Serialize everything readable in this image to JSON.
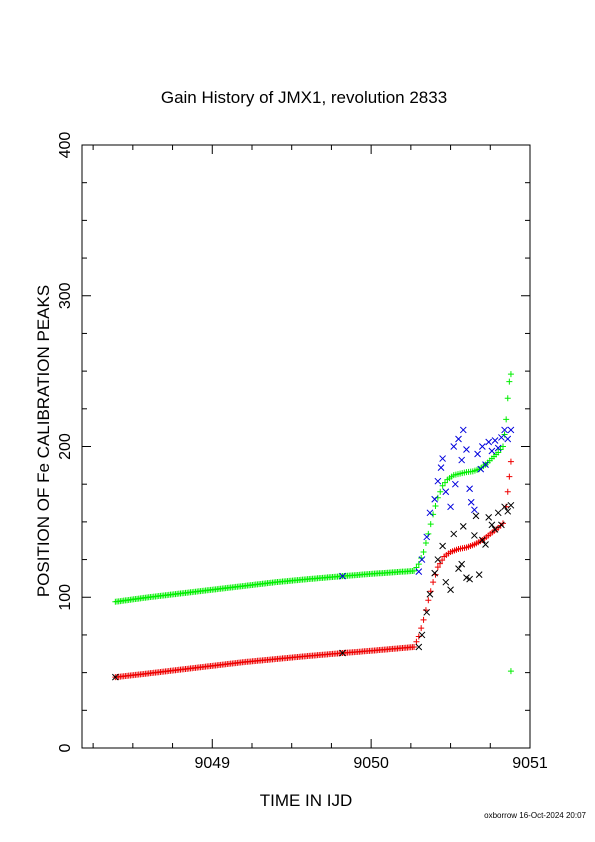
{
  "chart_data": {
    "type": "scatter",
    "title": "Gain History of JMX1, revolution 2833",
    "xlabel": "TIME IN IJD",
    "ylabel": "POSITION OF Fe CALIBRATION PEAKS",
    "xlim": [
      9048.18,
      9051.0
    ],
    "ylim": [
      0,
      400
    ],
    "x_ticks": [
      9049,
      9050,
      9051
    ],
    "y_ticks": [
      0,
      100,
      200,
      300,
      400
    ],
    "footer": "oxborrow 16-Oct-2024 20:07",
    "series": [
      {
        "color": "#00ee00",
        "marker": "plus",
        "points": [
          [
            9048.39,
            97
          ],
          [
            9048.6,
            100
          ],
          [
            9048.8,
            102.5
          ],
          [
            9049.0,
            105
          ],
          [
            9049.2,
            107.5
          ],
          [
            9049.4,
            110
          ],
          [
            9049.6,
            112
          ],
          [
            9049.82,
            114
          ],
          [
            9050.0,
            115.5
          ],
          [
            9050.27,
            117.5
          ],
          [
            9050.3,
            122
          ],
          [
            9050.33,
            130
          ],
          [
            9050.36,
            142
          ],
          [
            9050.39,
            155
          ],
          [
            9050.42,
            166
          ],
          [
            9050.45,
            174
          ],
          [
            9050.48,
            178
          ],
          [
            9050.52,
            181
          ],
          [
            9050.56,
            182
          ],
          [
            9050.6,
            183
          ],
          [
            9050.64,
            183.5
          ],
          [
            9050.68,
            185
          ],
          [
            9050.72,
            188
          ],
          [
            9050.76,
            192
          ],
          [
            9050.8,
            196
          ],
          [
            9050.83,
            200
          ],
          [
            9050.84,
            208
          ],
          [
            9050.85,
            218
          ],
          [
            9050.86,
            232
          ],
          [
            9050.87,
            243
          ],
          [
            9050.88,
            248
          ],
          [
            9050.88,
            51
          ]
        ]
      },
      {
        "color": "#ee0000",
        "marker": "plus",
        "points": [
          [
            9048.39,
            47
          ],
          [
            9048.6,
            49.5
          ],
          [
            9048.8,
            52
          ],
          [
            9049.0,
            54.5
          ],
          [
            9049.2,
            57
          ],
          [
            9049.4,
            59
          ],
          [
            9049.6,
            61
          ],
          [
            9049.82,
            63
          ],
          [
            9050.0,
            64.5
          ],
          [
            9050.27,
            67
          ],
          [
            9050.3,
            74
          ],
          [
            9050.33,
            85
          ],
          [
            9050.36,
            98
          ],
          [
            9050.39,
            110
          ],
          [
            9050.42,
            120
          ],
          [
            9050.46,
            127
          ],
          [
            9050.5,
            130
          ],
          [
            9050.55,
            132
          ],
          [
            9050.6,
            133
          ],
          [
            9050.65,
            135
          ],
          [
            9050.7,
            138
          ],
          [
            9050.75,
            142
          ],
          [
            9050.8,
            146
          ],
          [
            9050.83,
            149
          ],
          [
            9050.85,
            160
          ],
          [
            9050.86,
            170
          ],
          [
            9050.87,
            180
          ],
          [
            9050.88,
            190
          ]
        ]
      },
      {
        "color": "#0000dd",
        "marker": "cross",
        "points": [
          [
            9049.82,
            114
          ],
          [
            9050.3,
            117
          ],
          [
            9050.32,
            125
          ],
          [
            9050.35,
            140
          ],
          [
            9050.37,
            156
          ],
          [
            9050.4,
            165
          ],
          [
            9050.42,
            177
          ],
          [
            9050.44,
            186
          ],
          [
            9050.45,
            192
          ],
          [
            9050.47,
            170
          ],
          [
            9050.5,
            160
          ],
          [
            9050.52,
            200
          ],
          [
            9050.53,
            175
          ],
          [
            9050.55,
            205
          ],
          [
            9050.57,
            191
          ],
          [
            9050.58,
            211
          ],
          [
            9050.6,
            198
          ],
          [
            9050.62,
            172
          ],
          [
            9050.63,
            163
          ],
          [
            9050.65,
            158
          ],
          [
            9050.67,
            195
          ],
          [
            9050.69,
            185
          ],
          [
            9050.7,
            200
          ],
          [
            9050.72,
            188
          ],
          [
            9050.74,
            203
          ],
          [
            9050.76,
            197
          ],
          [
            9050.78,
            204
          ],
          [
            9050.8,
            199
          ],
          [
            9050.82,
            206
          ],
          [
            9050.84,
            211
          ],
          [
            9050.86,
            205
          ],
          [
            9050.88,
            211
          ]
        ]
      },
      {
        "color": "#000000",
        "marker": "cross",
        "points": [
          [
            9048.39,
            47
          ],
          [
            9049.82,
            63
          ],
          [
            9050.3,
            67
          ],
          [
            9050.32,
            75
          ],
          [
            9050.35,
            90
          ],
          [
            9050.37,
            102
          ],
          [
            9050.4,
            116
          ],
          [
            9050.42,
            125
          ],
          [
            9050.45,
            134
          ],
          [
            9050.47,
            110
          ],
          [
            9050.5,
            105
          ],
          [
            9050.52,
            142
          ],
          [
            9050.55,
            119
          ],
          [
            9050.57,
            122
          ],
          [
            9050.58,
            147
          ],
          [
            9050.6,
            113
          ],
          [
            9050.62,
            112
          ],
          [
            9050.65,
            141
          ],
          [
            9050.66,
            154
          ],
          [
            9050.68,
            115
          ],
          [
            9050.7,
            138
          ],
          [
            9050.72,
            135
          ],
          [
            9050.74,
            153
          ],
          [
            9050.76,
            148
          ],
          [
            9050.78,
            145
          ],
          [
            9050.8,
            156
          ],
          [
            9050.82,
            148
          ],
          [
            9050.84,
            160
          ],
          [
            9050.86,
            157
          ],
          [
            9050.88,
            161
          ]
        ]
      }
    ]
  }
}
